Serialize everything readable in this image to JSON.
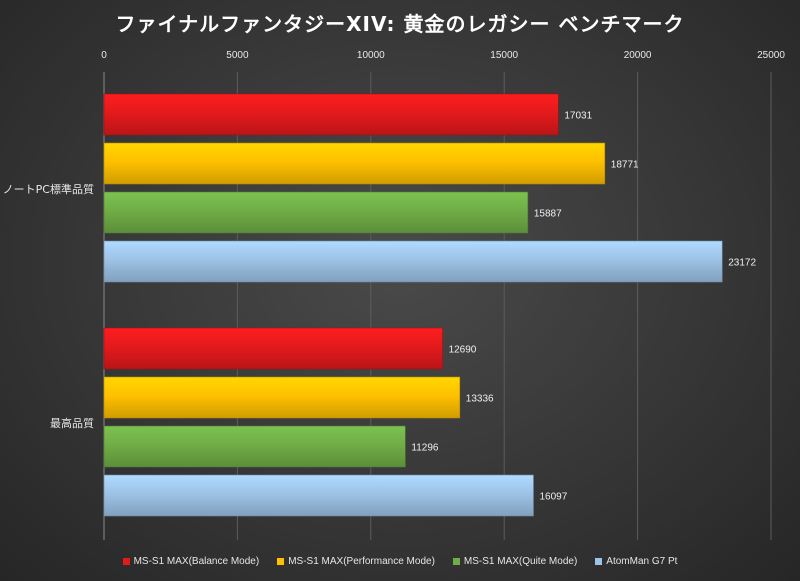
{
  "chart_data": {
    "type": "bar",
    "orientation": "horizontal",
    "title": "ファイナルファンタジーXIV: 黄金のレガシー ベンチマーク",
    "categories": [
      "ノートPC標準品質",
      "最高品質"
    ],
    "series": [
      {
        "name": "MS-S1 MAX(Balance Mode)",
        "color": "#e31a1c",
        "values": [
          17031,
          12690
        ]
      },
      {
        "name": "MS-S1 MAX(Performance Mode)",
        "color": "#ffc000",
        "values": [
          18771,
          13336
        ]
      },
      {
        "name": "MS-S1 MAX(Quite Mode)",
        "color": "#70ad47",
        "values": [
          15887,
          11296
        ]
      },
      {
        "name": "AtomMan G7 Pt",
        "color": "#9dc3e6",
        "values": [
          23172,
          16097
        ]
      }
    ],
    "xlim": [
      0,
      25000
    ],
    "xticks": [
      0,
      5000,
      10000,
      15000,
      20000,
      25000
    ],
    "xaxis_position": "top",
    "legend_position": "bottom",
    "grid": true
  }
}
